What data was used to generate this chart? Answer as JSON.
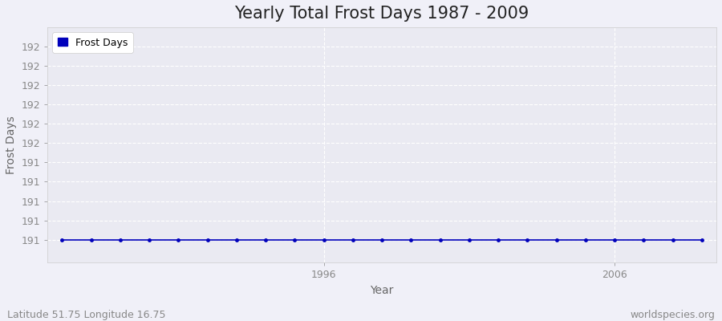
{
  "title": "Yearly Total Frost Days 1987 - 2009",
  "xlabel": "Year",
  "ylabel": "Frost Days",
  "legend_label": "Frost Days",
  "subtitle_left": "Latitude 51.75 Longitude 16.75",
  "subtitle_right": "worldspecies.org",
  "years": [
    1987,
    1988,
    1989,
    1990,
    1991,
    1992,
    1993,
    1994,
    1995,
    1996,
    1997,
    1998,
    1999,
    2000,
    2001,
    2002,
    2003,
    2004,
    2005,
    2006,
    2007,
    2008,
    2009
  ],
  "values": [
    191.0,
    191.0,
    191.0,
    191.0,
    191.0,
    191.0,
    191.0,
    191.0,
    191.0,
    191.0,
    191.0,
    191.0,
    191.0,
    191.0,
    191.0,
    191.0,
    191.0,
    191.0,
    191.0,
    191.0,
    191.0,
    191.0,
    191.0
  ],
  "line_color": "#0000bb",
  "marker": "o",
  "marker_size": 2.5,
  "ylim_min": 190.88,
  "ylim_max": 192.1,
  "xlim_min": 1986.5,
  "xlim_max": 2009.5,
  "background_color": "#f0f0f8",
  "plot_area_color": "#eaeaf2",
  "grid_color": "#ffffff",
  "title_fontsize": 15,
  "axis_label_fontsize": 10,
  "tick_fontsize": 9,
  "subtitle_fontsize": 9,
  "ytick_values": [
    191.0,
    191.1,
    191.2,
    191.3,
    191.4,
    191.5,
    191.6,
    191.7,
    191.8,
    191.9,
    192.0
  ],
  "ytick_labels": [
    "191",
    "191",
    "191",
    "191",
    "191",
    "192",
    "192",
    "192",
    "192",
    "192",
    "192"
  ],
  "xtick_values": [
    1996,
    2006
  ],
  "xtick_labels": [
    "1996",
    "2006"
  ]
}
